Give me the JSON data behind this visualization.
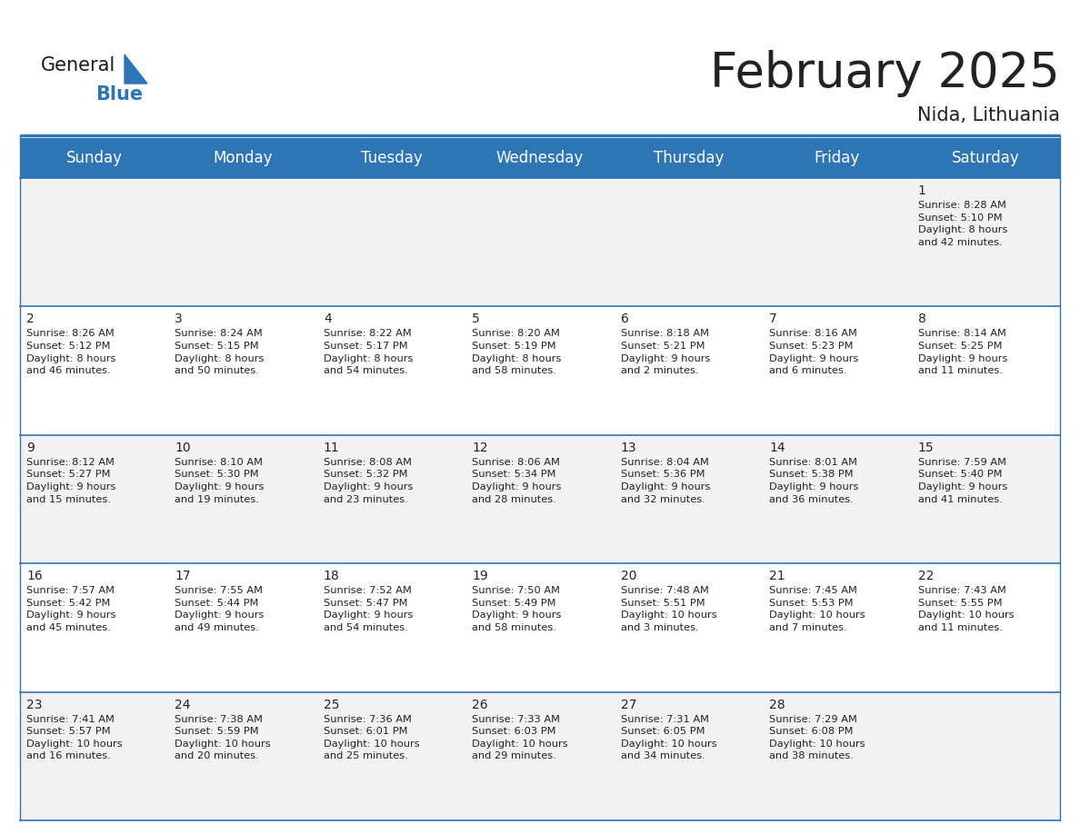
{
  "title": "February 2025",
  "subtitle": "Nida, Lithuania",
  "header_bg": "#2E75B6",
  "header_text_color": "#FFFFFF",
  "cell_bg_odd": "#F2F2F2",
  "cell_bg_even": "#FFFFFF",
  "text_color": "#222222",
  "line_color": "#2E75B6",
  "border_color": "#AAAAAA",
  "day_headers": [
    "Sunday",
    "Monday",
    "Tuesday",
    "Wednesday",
    "Thursday",
    "Friday",
    "Saturday"
  ],
  "weeks": [
    [
      {
        "day": null,
        "info": null
      },
      {
        "day": null,
        "info": null
      },
      {
        "day": null,
        "info": null
      },
      {
        "day": null,
        "info": null
      },
      {
        "day": null,
        "info": null
      },
      {
        "day": null,
        "info": null
      },
      {
        "day": "1",
        "info": "Sunrise: 8:28 AM\nSunset: 5:10 PM\nDaylight: 8 hours\nand 42 minutes."
      }
    ],
    [
      {
        "day": "2",
        "info": "Sunrise: 8:26 AM\nSunset: 5:12 PM\nDaylight: 8 hours\nand 46 minutes."
      },
      {
        "day": "3",
        "info": "Sunrise: 8:24 AM\nSunset: 5:15 PM\nDaylight: 8 hours\nand 50 minutes."
      },
      {
        "day": "4",
        "info": "Sunrise: 8:22 AM\nSunset: 5:17 PM\nDaylight: 8 hours\nand 54 minutes."
      },
      {
        "day": "5",
        "info": "Sunrise: 8:20 AM\nSunset: 5:19 PM\nDaylight: 8 hours\nand 58 minutes."
      },
      {
        "day": "6",
        "info": "Sunrise: 8:18 AM\nSunset: 5:21 PM\nDaylight: 9 hours\nand 2 minutes."
      },
      {
        "day": "7",
        "info": "Sunrise: 8:16 AM\nSunset: 5:23 PM\nDaylight: 9 hours\nand 6 minutes."
      },
      {
        "day": "8",
        "info": "Sunrise: 8:14 AM\nSunset: 5:25 PM\nDaylight: 9 hours\nand 11 minutes."
      }
    ],
    [
      {
        "day": "9",
        "info": "Sunrise: 8:12 AM\nSunset: 5:27 PM\nDaylight: 9 hours\nand 15 minutes."
      },
      {
        "day": "10",
        "info": "Sunrise: 8:10 AM\nSunset: 5:30 PM\nDaylight: 9 hours\nand 19 minutes."
      },
      {
        "day": "11",
        "info": "Sunrise: 8:08 AM\nSunset: 5:32 PM\nDaylight: 9 hours\nand 23 minutes."
      },
      {
        "day": "12",
        "info": "Sunrise: 8:06 AM\nSunset: 5:34 PM\nDaylight: 9 hours\nand 28 minutes."
      },
      {
        "day": "13",
        "info": "Sunrise: 8:04 AM\nSunset: 5:36 PM\nDaylight: 9 hours\nand 32 minutes."
      },
      {
        "day": "14",
        "info": "Sunrise: 8:01 AM\nSunset: 5:38 PM\nDaylight: 9 hours\nand 36 minutes."
      },
      {
        "day": "15",
        "info": "Sunrise: 7:59 AM\nSunset: 5:40 PM\nDaylight: 9 hours\nand 41 minutes."
      }
    ],
    [
      {
        "day": "16",
        "info": "Sunrise: 7:57 AM\nSunset: 5:42 PM\nDaylight: 9 hours\nand 45 minutes."
      },
      {
        "day": "17",
        "info": "Sunrise: 7:55 AM\nSunset: 5:44 PM\nDaylight: 9 hours\nand 49 minutes."
      },
      {
        "day": "18",
        "info": "Sunrise: 7:52 AM\nSunset: 5:47 PM\nDaylight: 9 hours\nand 54 minutes."
      },
      {
        "day": "19",
        "info": "Sunrise: 7:50 AM\nSunset: 5:49 PM\nDaylight: 9 hours\nand 58 minutes."
      },
      {
        "day": "20",
        "info": "Sunrise: 7:48 AM\nSunset: 5:51 PM\nDaylight: 10 hours\nand 3 minutes."
      },
      {
        "day": "21",
        "info": "Sunrise: 7:45 AM\nSunset: 5:53 PM\nDaylight: 10 hours\nand 7 minutes."
      },
      {
        "day": "22",
        "info": "Sunrise: 7:43 AM\nSunset: 5:55 PM\nDaylight: 10 hours\nand 11 minutes."
      }
    ],
    [
      {
        "day": "23",
        "info": "Sunrise: 7:41 AM\nSunset: 5:57 PM\nDaylight: 10 hours\nand 16 minutes."
      },
      {
        "day": "24",
        "info": "Sunrise: 7:38 AM\nSunset: 5:59 PM\nDaylight: 10 hours\nand 20 minutes."
      },
      {
        "day": "25",
        "info": "Sunrise: 7:36 AM\nSunset: 6:01 PM\nDaylight: 10 hours\nand 25 minutes."
      },
      {
        "day": "26",
        "info": "Sunrise: 7:33 AM\nSunset: 6:03 PM\nDaylight: 10 hours\nand 29 minutes."
      },
      {
        "day": "27",
        "info": "Sunrise: 7:31 AM\nSunset: 6:05 PM\nDaylight: 10 hours\nand 34 minutes."
      },
      {
        "day": "28",
        "info": "Sunrise: 7:29 AM\nSunset: 6:08 PM\nDaylight: 10 hours\nand 38 minutes."
      },
      {
        "day": null,
        "info": null
      }
    ]
  ],
  "logo_color_general": "#1a1a1a",
  "logo_color_blue": "#2E75B6",
  "logo_triangle_color": "#2E75B6",
  "title_fontsize": 38,
  "subtitle_fontsize": 15,
  "header_fontsize": 12,
  "day_number_fontsize": 10,
  "info_fontsize": 8.2
}
